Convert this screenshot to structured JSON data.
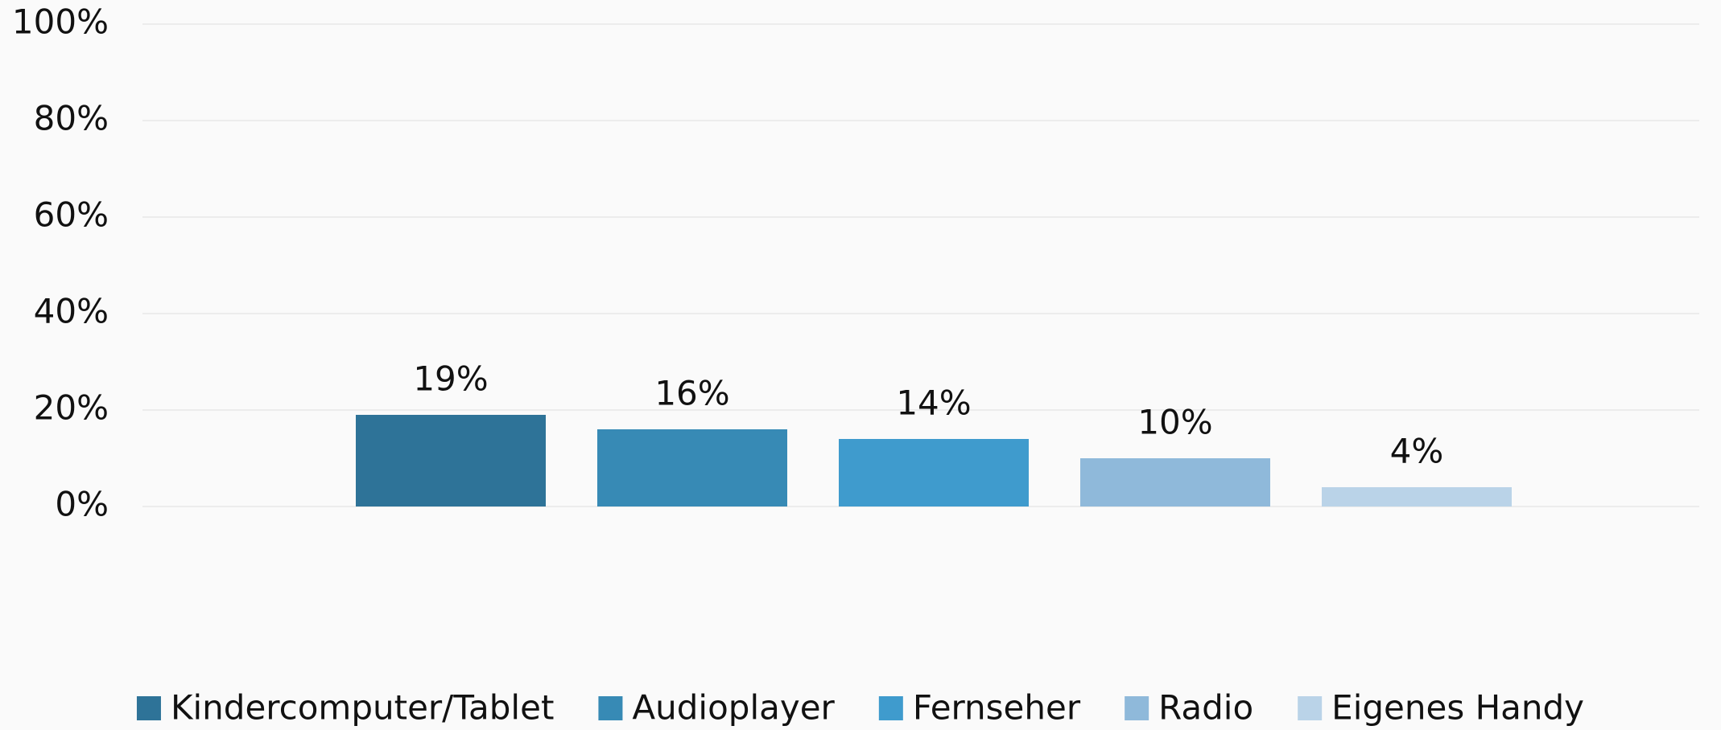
{
  "chart_data": {
    "type": "bar",
    "series": [
      {
        "name": "Kindercomputer/Tablet",
        "color": "#2e7398",
        "values": [
          19
        ],
        "value_labels": [
          "19%"
        ]
      },
      {
        "name": "Audioplayer",
        "color": "#378ab5",
        "values": [
          16
        ],
        "value_labels": [
          "16%"
        ]
      },
      {
        "name": "Fernseher",
        "color": "#3f9bcd",
        "values": [
          14
        ],
        "value_labels": [
          "14%"
        ]
      },
      {
        "name": "Radio",
        "color": "#8fb9da",
        "values": [
          10
        ],
        "value_labels": [
          "10%"
        ]
      },
      {
        "name": "Eigenes Handy",
        "color": "#bad3e8",
        "values": [
          4
        ],
        "value_labels": [
          "4%"
        ]
      }
    ],
    "ylim": [
      0,
      100
    ],
    "yticks": [
      {
        "value": 0,
        "label": "0%"
      },
      {
        "value": 20,
        "label": "20%"
      },
      {
        "value": 40,
        "label": "40%"
      },
      {
        "value": 60,
        "label": "60%"
      },
      {
        "value": 80,
        "label": "80%"
      },
      {
        "value": 100,
        "label": "100%"
      }
    ],
    "grid": true,
    "legend": "bottom"
  }
}
